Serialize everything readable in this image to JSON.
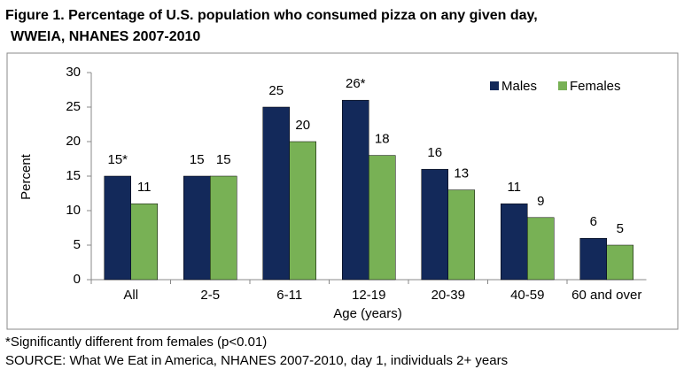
{
  "chart_data": {
    "type": "bar",
    "title": [
      "Figure 1.   Percentage of U.S. population who consumed pizza on any given day,",
      "WWEIA, NHANES 2007-2010"
    ],
    "categories": [
      "All",
      "2-5",
      "6-11",
      "12-19",
      "20-39",
      "40-59",
      "60 and over"
    ],
    "series": [
      {
        "name": "Males",
        "color": "#13295a",
        "values": [
          15,
          15,
          25,
          26,
          16,
          11,
          6
        ],
        "value_labels": [
          "15*",
          "15",
          "25",
          "26*",
          "16",
          "11",
          "6"
        ]
      },
      {
        "name": "Females",
        "color": "#78b155",
        "values": [
          11,
          15,
          20,
          18,
          13,
          9,
          5
        ]
      }
    ],
    "xlabel": "Age (years)",
    "ylabel": "Percent",
    "ylim": [
      0,
      30
    ],
    "yticks": [
      0,
      5,
      10,
      15,
      20,
      25,
      30
    ],
    "grid": false,
    "legend": "top-right",
    "footnotes": [
      "*Significantly different from females (p<0.01)",
      "SOURCE: What We Eat in America, NHANES 2007-2010, day 1, individuals 2+ years"
    ]
  }
}
